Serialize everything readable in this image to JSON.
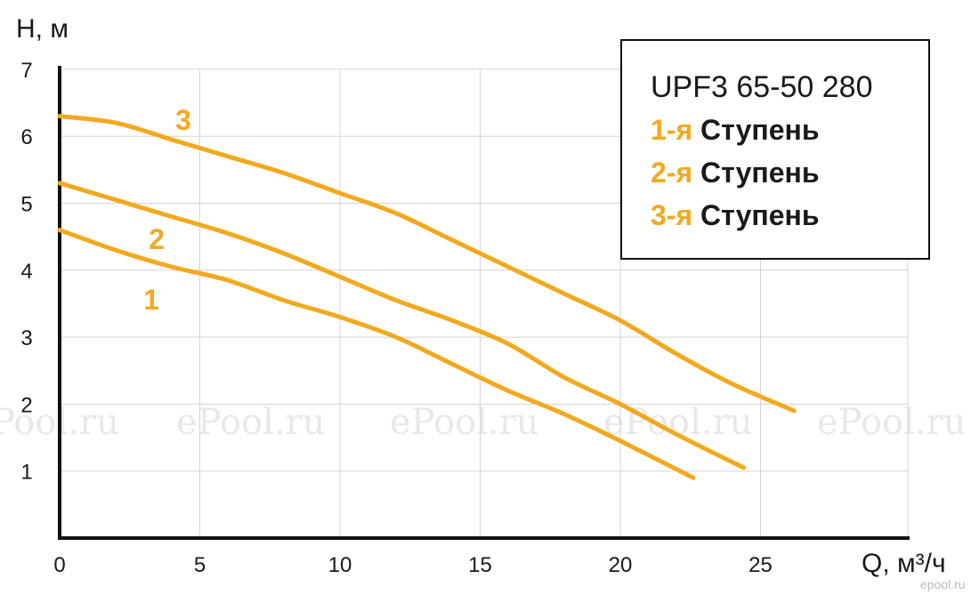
{
  "chart_data": {
    "type": "line",
    "title": "UPF3 65-50 280",
    "xlabel": "Q, м³/ч",
    "ylabel": "H, м",
    "xlim": [
      0,
      30
    ],
    "ylim": [
      0,
      7
    ],
    "xticks": [
      0,
      5,
      10,
      15,
      20,
      25
    ],
    "yticks": [
      1,
      2,
      3,
      4,
      5,
      6,
      7
    ],
    "grid": true,
    "legend_position": "top-right",
    "color": "#f2a91f",
    "series": [
      {
        "name": "1-я Ступень",
        "curve_label": "1",
        "x": [
          0,
          2,
          4,
          6,
          8,
          10,
          12,
          14,
          16,
          18,
          20,
          22.6
        ],
        "y": [
          4.6,
          4.3,
          4.05,
          3.85,
          3.55,
          3.3,
          3.0,
          2.6,
          2.2,
          1.85,
          1.45,
          0.9
        ]
      },
      {
        "name": "2-я Ступень",
        "curve_label": "2",
        "x": [
          0,
          2,
          4,
          6,
          8,
          10,
          12,
          14,
          16,
          18,
          20,
          22,
          24.4
        ],
        "y": [
          5.3,
          5.05,
          4.8,
          4.55,
          4.25,
          3.9,
          3.55,
          3.25,
          2.9,
          2.4,
          2.0,
          1.55,
          1.05
        ]
      },
      {
        "name": "3-я Ступень",
        "curve_label": "3",
        "x": [
          0,
          2,
          4,
          6,
          8,
          10,
          12,
          14,
          16,
          18,
          20,
          22,
          24,
          26.2
        ],
        "y": [
          6.3,
          6.2,
          5.95,
          5.7,
          5.45,
          5.15,
          4.85,
          4.45,
          4.05,
          3.65,
          3.25,
          2.75,
          2.3,
          1.9
        ]
      }
    ]
  },
  "legend": {
    "title": "UPF3 65-50 280",
    "rows": [
      {
        "num": "1-я",
        "word": "Ступень"
      },
      {
        "num": "2-я",
        "word": "Ступень"
      },
      {
        "num": "3-я",
        "word": "Ступень"
      }
    ]
  },
  "watermarks": [
    "Pool.ru",
    "ePool.ru",
    "ePool.ru",
    "ePool.ru",
    "ePool.ru"
  ],
  "corner_mark": "epool.ru"
}
